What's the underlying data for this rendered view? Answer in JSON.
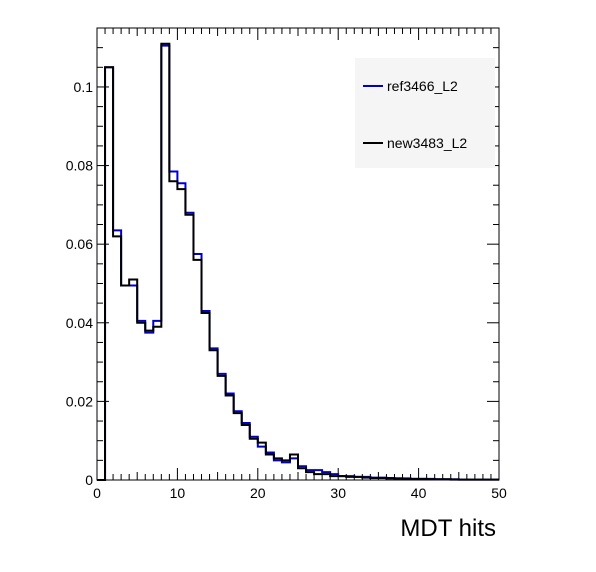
{
  "chart_data": {
    "type": "line",
    "title": "",
    "xlabel": "MDT hits",
    "ylabel": "",
    "xlim": [
      0,
      50
    ],
    "ylim": [
      0,
      0.115
    ],
    "bin_width": 1,
    "x_ticks": [
      0,
      10,
      20,
      30,
      40,
      50
    ],
    "x_tick_labels": [
      "0",
      "10",
      "20",
      "30",
      "40",
      "50"
    ],
    "y_ticks": [
      0,
      0.02,
      0.04,
      0.06,
      0.08,
      0.1
    ],
    "y_tick_labels": [
      "0",
      "0.02",
      "0.04",
      "0.06",
      "0.08",
      "0.1"
    ],
    "grid": false,
    "legend_position": "top-right",
    "series": [
      {
        "name": "ref3466_L2",
        "color": "#0000cc",
        "values": [
          0.0,
          0.105,
          0.0635,
          0.0495,
          0.0495,
          0.0405,
          0.0375,
          0.0405,
          0.1105,
          0.0785,
          0.0755,
          0.068,
          0.0575,
          0.043,
          0.0335,
          0.027,
          0.022,
          0.0175,
          0.0145,
          0.011,
          0.0085,
          0.007,
          0.005,
          0.0045,
          0.0055,
          0.0035,
          0.0025,
          0.0025,
          0.002,
          0.0015,
          0.001,
          0.001,
          0.0008,
          0.0008,
          0.0006,
          0.0006,
          0.0005,
          0.0004,
          0.0004,
          0.0003,
          0.0003,
          0.0003,
          0.0002,
          0.0002,
          0.0002,
          0.0001,
          0.0001,
          0.0001,
          0.0001,
          0.0001
        ]
      },
      {
        "name": "new3483_L2",
        "color": "#000000",
        "values": [
          0.0,
          0.105,
          0.062,
          0.0495,
          0.051,
          0.04,
          0.038,
          0.039,
          0.111,
          0.076,
          0.074,
          0.0675,
          0.056,
          0.0425,
          0.033,
          0.0265,
          0.0215,
          0.017,
          0.014,
          0.0105,
          0.0095,
          0.0065,
          0.0055,
          0.005,
          0.0065,
          0.003,
          0.002,
          0.0015,
          0.0015,
          0.001,
          0.001,
          0.0008,
          0.0008,
          0.0006,
          0.0005,
          0.0005,
          0.0004,
          0.0004,
          0.0003,
          0.0003,
          0.0003,
          0.0002,
          0.0002,
          0.0002,
          0.0001,
          0.0001,
          0.0001,
          0.0001,
          0.0001,
          0.0001
        ]
      }
    ]
  }
}
